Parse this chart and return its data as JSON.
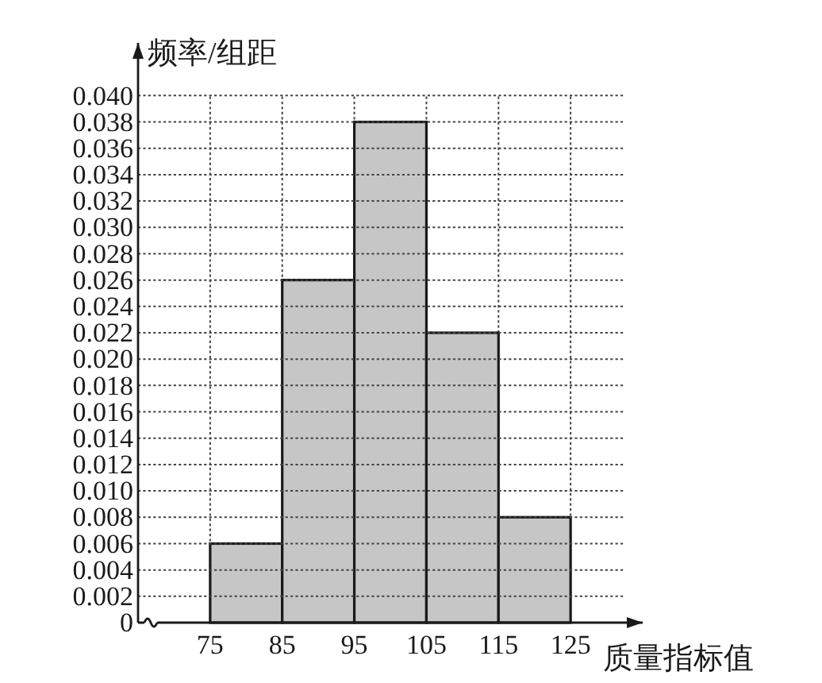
{
  "chart_data": {
    "type": "histogram",
    "xlabel": "质量指标值",
    "ylabel": "频率/组距",
    "bins": [
      75,
      85,
      95,
      105,
      115,
      125
    ],
    "values": [
      0.006,
      0.026,
      0.038,
      0.022,
      0.008
    ],
    "color": "#c6c6c6",
    "xlim": [
      65,
      135
    ],
    "ylim": [
      0,
      0.044
    ],
    "xticks": [
      75,
      85,
      95,
      105,
      115,
      125
    ],
    "yticks": [
      0,
      0.002,
      0.004,
      0.006,
      0.008,
      {
        "value": 0.01,
        "label": "0.010"
      },
      0.012,
      0.014,
      0.016,
      0.018,
      {
        "value": 0.02,
        "label": "0.020"
      },
      0.022,
      0.024,
      0.026,
      0.028,
      {
        "value": 0.03,
        "label": "0.030"
      },
      0.032,
      0.034,
      0.036,
      0.038,
      {
        "value": 0.04,
        "label": "0.040"
      }
    ],
    "grid": true
  }
}
